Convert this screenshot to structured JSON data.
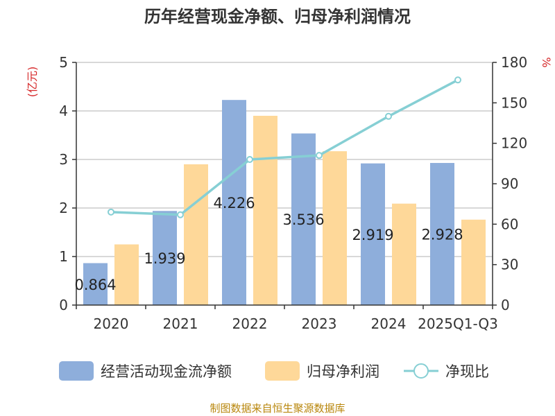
{
  "chart_data": {
    "type": "bar",
    "title": "历年经营现金净额、归母净利润情况",
    "y_left_unit": "(亿元)",
    "y_right_unit": "%",
    "categories": [
      "2020",
      "2021",
      "2022",
      "2023",
      "2024",
      "2025Q1-Q3"
    ],
    "ylim_left": [
      0,
      5
    ],
    "ylim_right": [
      0,
      180
    ],
    "left_ticks": [
      "0",
      "1",
      "2",
      "3",
      "4",
      "5"
    ],
    "right_ticks": [
      "0",
      "30",
      "60",
      "90",
      "120",
      "150",
      "180"
    ],
    "series": [
      {
        "name": "经营活动现金流净额",
        "type": "bar",
        "color": "#8eaedb",
        "values": [
          0.864,
          1.939,
          4.226,
          3.536,
          2.919,
          2.928
        ],
        "labels": [
          "0.864",
          "1.939",
          "4.226",
          "3.536",
          "2.919",
          "2.928"
        ]
      },
      {
        "name": "归母净利润",
        "type": "bar",
        "color": "#fed899",
        "values": [
          1.25,
          2.9,
          3.9,
          3.17,
          2.09,
          1.76
        ]
      },
      {
        "name": "净现比",
        "type": "line",
        "axis": "right",
        "color": "#86cfd4",
        "values": [
          69,
          67,
          108,
          111,
          140,
          167
        ]
      }
    ],
    "grid": true,
    "legend_position": "bottom"
  },
  "source": "制图数据来自恒生聚源数据库"
}
